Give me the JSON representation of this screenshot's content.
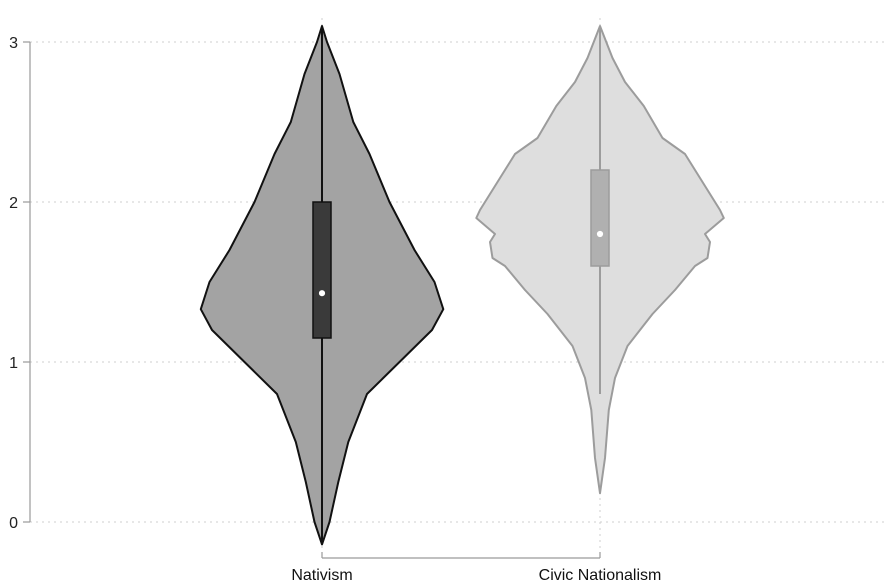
{
  "chart_data": {
    "type": "violin",
    "title": "",
    "xlabel": "",
    "ylabel": "",
    "ylim": [
      0,
      3
    ],
    "yticks": [
      0,
      1,
      2,
      3
    ],
    "grid": true,
    "legend": "none",
    "series": [
      {
        "name": "Nativism",
        "fill": "#a3a3a3",
        "stroke": "#111111",
        "box_fill": "#3a3a3a",
        "whisker_color": "#111111",
        "median_marker": "#ffffff",
        "whisker_min": -0.14,
        "q1": 1.15,
        "median": 1.43,
        "q3": 2.0,
        "whisker_max": 3.1,
        "density": [
          [
            -0.14,
            0.0
          ],
          [
            0.0,
            0.06
          ],
          [
            0.25,
            0.13
          ],
          [
            0.5,
            0.21
          ],
          [
            0.8,
            0.36
          ],
          [
            1.0,
            0.62
          ],
          [
            1.2,
            0.88
          ],
          [
            1.33,
            0.97
          ],
          [
            1.5,
            0.9
          ],
          [
            1.7,
            0.74
          ],
          [
            2.0,
            0.54
          ],
          [
            2.3,
            0.38
          ],
          [
            2.5,
            0.25
          ],
          [
            2.8,
            0.14
          ],
          [
            3.0,
            0.04
          ],
          [
            3.1,
            0.0
          ]
        ]
      },
      {
        "name": "Civic Nationalism",
        "fill": "#dedede",
        "stroke": "#9c9c9c",
        "box_fill": "#b0b0b0",
        "whisker_color": "#9c9c9c",
        "median_marker": "#ffffff",
        "whisker_min": 0.8,
        "q1": 1.6,
        "median": 1.8,
        "q3": 2.2,
        "whisker_max": 3.1,
        "density": [
          [
            0.18,
            0.0
          ],
          [
            0.4,
            0.04
          ],
          [
            0.7,
            0.07
          ],
          [
            0.9,
            0.12
          ],
          [
            1.1,
            0.22
          ],
          [
            1.3,
            0.42
          ],
          [
            1.45,
            0.6
          ],
          [
            1.6,
            0.76
          ],
          [
            1.65,
            0.86
          ],
          [
            1.75,
            0.88
          ],
          [
            1.8,
            0.84
          ],
          [
            1.9,
            0.99
          ],
          [
            1.95,
            0.96
          ],
          [
            2.05,
            0.88
          ],
          [
            2.15,
            0.8
          ],
          [
            2.3,
            0.68
          ],
          [
            2.4,
            0.5
          ],
          [
            2.6,
            0.35
          ],
          [
            2.75,
            0.2
          ],
          [
            2.9,
            0.1
          ],
          [
            3.1,
            0.0
          ]
        ]
      }
    ]
  }
}
